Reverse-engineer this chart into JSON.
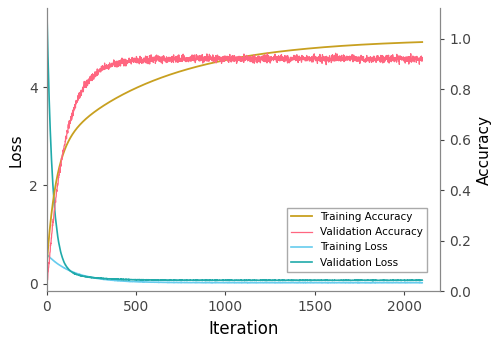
{
  "xlabel": "Iteration",
  "ylabel_left": "Loss",
  "ylabel_right": "Accuracy",
  "x_max": 2200,
  "x_ticks": [
    0,
    500,
    1000,
    1500,
    2000
  ],
  "left_ylim": [
    -0.15,
    5.6
  ],
  "left_yticks": [
    0,
    2,
    4
  ],
  "right_ylim": [
    0.0,
    1.12
  ],
  "right_yticks": [
    0.0,
    0.2,
    0.4,
    0.6,
    0.8,
    1.0
  ],
  "colors": {
    "training_accuracy": "#C8A020",
    "validation_accuracy": "#FF6680",
    "training_loss": "#66CCEE",
    "validation_loss": "#20AAAA"
  },
  "n_points": 2100,
  "seed": 42,
  "figsize": [
    5.0,
    3.46
  ],
  "dpi": 100
}
